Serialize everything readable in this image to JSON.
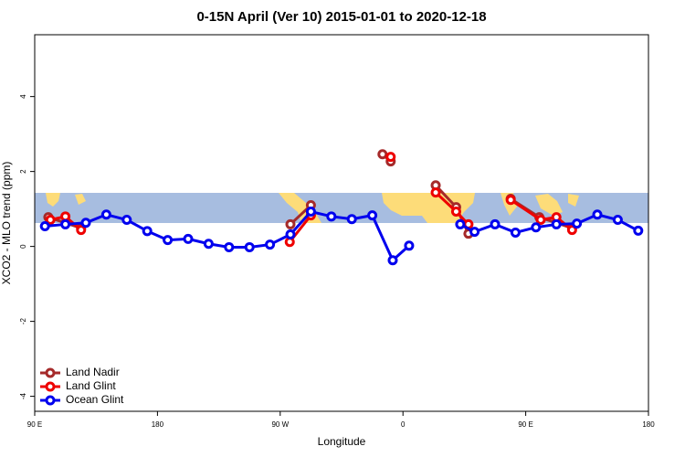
{
  "chart_data": {
    "type": "line",
    "title": "0-15N April (Ver 10)   2015-01-01 to 2020-12-18",
    "x_label": "Longitude",
    "y_label": "XCO2 - MLO trend (ppm)",
    "xlim": [
      90,
      540
    ],
    "xticks": [
      {
        "value": 90,
        "label": "90 E"
      },
      {
        "value": 180,
        "label": "180"
      },
      {
        "value": 270,
        "label": "90 W"
      },
      {
        "value": 360,
        "label": "0"
      },
      {
        "value": 450,
        "label": "90 E"
      },
      {
        "value": 540,
        "label": "180"
      }
    ],
    "ylim": [
      -4.4,
      5.65
    ],
    "yticks": [
      -4,
      -2,
      0,
      2,
      4
    ],
    "legend": "bottom-left",
    "series": [
      {
        "name": "Land Nadir",
        "color": "#a52a2a",
        "x": [
          100,
          124,
          200,
          277.5,
          292.5,
          320,
          345,
          351,
          370,
          384,
          399,
          408,
          420,
          439,
          460,
          484
        ],
        "values": [
          0.78,
          0.49,
          null,
          0.59,
          1.1,
          null,
          2.46,
          2.27,
          null,
          1.63,
          1.05,
          0.34,
          null,
          1.27,
          0.78,
          0.49
        ]
      },
      {
        "name": "Land Glint",
        "color": "#ee0000",
        "x": [
          101.5,
          112.5,
          124,
          200,
          277,
          292.5,
          320,
          351,
          370,
          384,
          399,
          408,
          420,
          439,
          461,
          472.5,
          484
        ],
        "values": [
          0.71,
          0.8,
          0.44,
          null,
          0.12,
          0.83,
          null,
          2.39,
          null,
          1.44,
          0.93,
          0.59,
          null,
          1.24,
          0.71,
          0.78,
          0.44
        ]
      },
      {
        "name": "Ocean Glint",
        "color": "#0000ee",
        "x": [
          97.5,
          112.5,
          127.5,
          142.5,
          157.5,
          172.5,
          187.5,
          202.5,
          217.5,
          232.5,
          247.5,
          262.5,
          277.5,
          292.5,
          307.5,
          322.5,
          337.5,
          352.5,
          364.5,
          385,
          402,
          412.5,
          427.5,
          442.5,
          457.5,
          472.5,
          487.5,
          502.5,
          517.5,
          532.5
        ],
        "values": [
          0.54,
          0.59,
          0.63,
          0.85,
          0.71,
          0.41,
          0.17,
          0.2,
          0.07,
          -0.02,
          -0.02,
          0.05,
          0.32,
          0.93,
          0.8,
          0.73,
          0.83,
          -0.37,
          0.02,
          null,
          0.59,
          0.39,
          0.59,
          0.37,
          0.51,
          0.59,
          0.61,
          0.85,
          0.71,
          0.42
        ]
      }
    ]
  }
}
